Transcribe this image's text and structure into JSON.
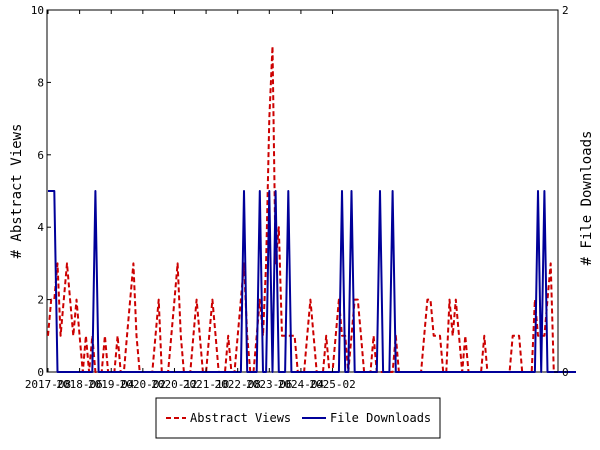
{
  "chart_data": {
    "type": "line",
    "y_left": {
      "label": "# Abstract Views",
      "ylim": [
        0,
        10
      ],
      "ticks": [
        "0",
        "2",
        "4",
        "6",
        "8",
        "10"
      ]
    },
    "y_right": {
      "label": "# File Downloads",
      "ylim": [
        0,
        2
      ],
      "ticks": [
        "0",
        "2"
      ]
    },
    "x_ticks": [
      "2017-08",
      "2018-06",
      "2019-04",
      "2020-02",
      "2020-12",
      "2021-10",
      "2022-08",
      "2023-06",
      "2024-04",
      "2025-02"
    ],
    "legend": {
      "placement": "bottom",
      "entries": [
        "Abstract Views",
        "File Downloads"
      ]
    },
    "grid": false,
    "colors": {
      "abstract_views": "#cc0000",
      "file_downloads": "#000099"
    },
    "series": [
      {
        "name": "Abstract Views",
        "axis": "left",
        "style": "dashed",
        "values": [
          1,
          2,
          2,
          3,
          1,
          2,
          3,
          2,
          1,
          2,
          1,
          0,
          1,
          0,
          1,
          0,
          0,
          0,
          1,
          0,
          0,
          0,
          1,
          0,
          0,
          1,
          2,
          3,
          1,
          0,
          0,
          0,
          0,
          0,
          1,
          2,
          0,
          0,
          0,
          1,
          2,
          3,
          1,
          0,
          0,
          0,
          1,
          2,
          1,
          0,
          0,
          1,
          2,
          1,
          0,
          0,
          0,
          1,
          0,
          0,
          1,
          2,
          3,
          1,
          0,
          0,
          1,
          2,
          1,
          3,
          7,
          9,
          3,
          4,
          1,
          1,
          1,
          1,
          1,
          0,
          0,
          0,
          1,
          2,
          1,
          0,
          0,
          0,
          1,
          0,
          0,
          1,
          2,
          1,
          1,
          0,
          1,
          2,
          2,
          1,
          0,
          0,
          0,
          1,
          0,
          0,
          0,
          0,
          0,
          0,
          1,
          0,
          0,
          0,
          0,
          0,
          0,
          0,
          0,
          1,
          2,
          2,
          1,
          1,
          1,
          0,
          0,
          2,
          1,
          2,
          1,
          0,
          1,
          0,
          0,
          0,
          0,
          0,
          1,
          0,
          0,
          0,
          0,
          0,
          0,
          0,
          0,
          1,
          1,
          1,
          0,
          0,
          0,
          0,
          2,
          1,
          1,
          1,
          2,
          3,
          0,
          0
        ]
      },
      {
        "name": "File Downloads",
        "axis": "right",
        "style": "solid",
        "values": [
          1,
          1,
          1,
          0,
          0,
          0,
          0,
          0,
          0,
          0,
          0,
          0,
          0,
          0,
          0,
          1,
          0,
          0,
          0,
          0,
          0,
          0,
          0,
          0,
          0,
          0,
          0,
          0,
          0,
          0,
          0,
          0,
          0,
          0,
          0,
          0,
          0,
          0,
          0,
          0,
          0,
          0,
          0,
          0,
          0,
          0,
          0,
          0,
          0,
          0,
          0,
          0,
          0,
          0,
          0,
          0,
          0,
          0,
          0,
          0,
          0,
          0,
          1,
          0,
          0,
          0,
          0,
          1,
          0,
          0,
          1,
          0,
          1,
          0,
          0,
          0,
          1,
          0,
          0,
          0,
          0,
          0,
          0,
          0,
          0,
          0,
          0,
          0,
          0,
          0,
          0,
          0,
          0,
          1,
          0,
          0,
          1,
          0,
          0,
          0,
          0,
          0,
          0,
          0,
          0,
          1,
          0,
          0,
          0,
          1,
          0,
          0,
          0,
          0,
          0,
          0,
          0,
          0,
          0,
          0,
          0,
          0,
          0,
          0,
          0,
          0,
          0,
          0,
          0,
          0,
          0,
          0,
          0,
          0,
          0,
          0,
          0,
          0,
          0,
          0,
          0,
          0,
          0,
          0,
          0,
          0,
          0,
          0,
          0,
          0,
          0,
          0,
          0,
          0,
          0,
          1,
          0,
          1,
          0,
          0,
          0,
          0,
          0,
          0,
          0,
          0,
          0,
          0
        ]
      }
    ]
  }
}
